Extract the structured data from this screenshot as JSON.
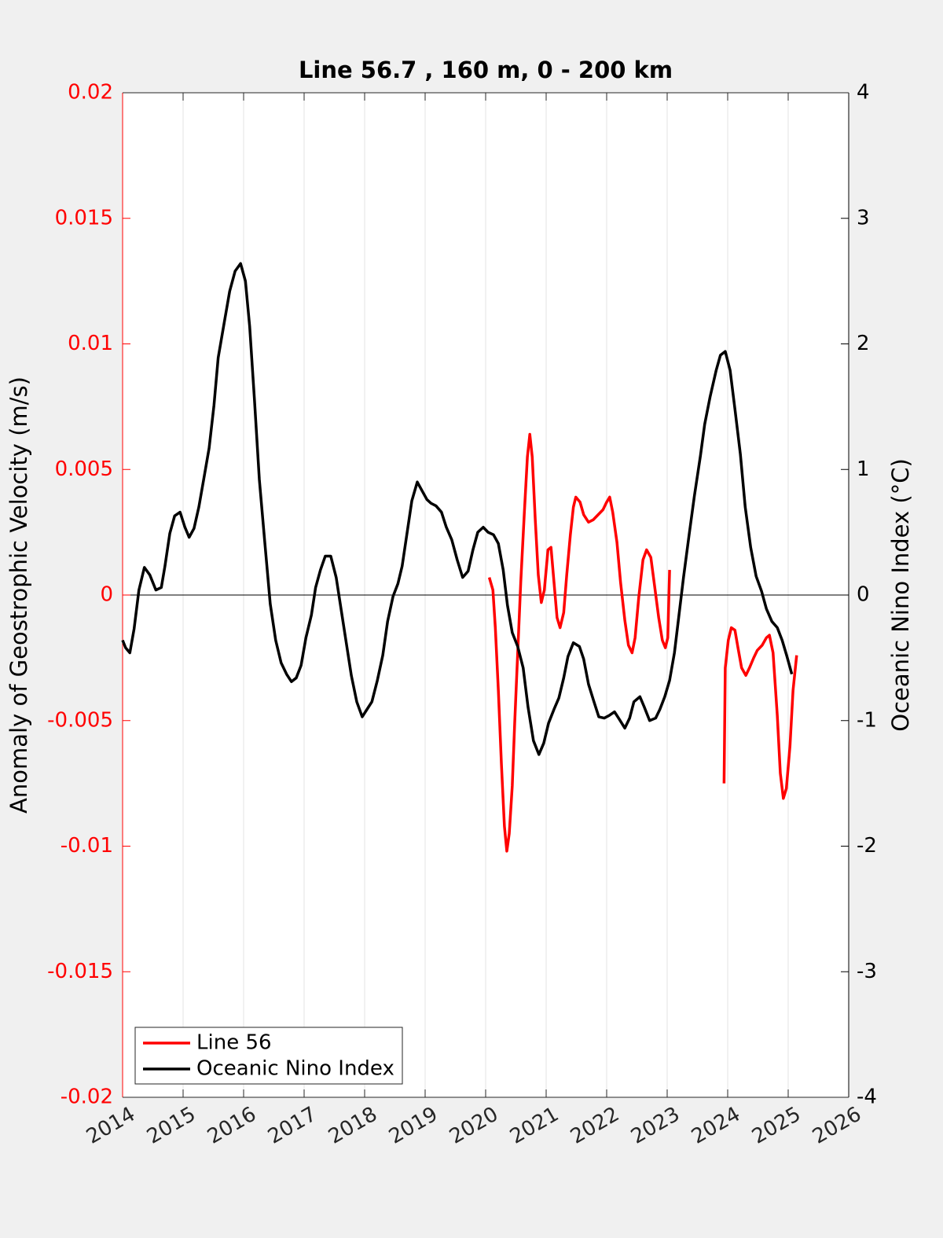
{
  "chart_data": {
    "type": "line",
    "title": "Line 56.7 , 160 m, 0 - 200 km",
    "y_label": "Anomaly of Geostrophic Velocity (m/s)",
    "y2_label": "Oceanic Nino Index (°C)",
    "xlim": [
      2014,
      2026
    ],
    "xticks": [
      2014,
      2015,
      2016,
      2017,
      2018,
      2019,
      2020,
      2021,
      2022,
      2023,
      2024,
      2025,
      2026
    ],
    "ylim": [
      -0.02,
      0.02
    ],
    "yticks": [
      -0.02,
      -0.015,
      -0.01,
      -0.005,
      0,
      0.005,
      0.01,
      0.015,
      0.02
    ],
    "y2lim": [
      -4,
      4
    ],
    "y2ticks": [
      -4,
      -3,
      -2,
      -1,
      0,
      1,
      2,
      3,
      4
    ],
    "grid": "x",
    "legend": "lower left",
    "series": [
      {
        "name": "Line 56",
        "color": "#ff0000",
        "axis": "y",
        "x": [
          2020.06,
          2020.12,
          2020.16,
          2020.21,
          2020.26,
          2020.31,
          2020.35,
          2020.39,
          2020.44,
          2020.48,
          2020.53,
          2020.58,
          2020.64,
          2020.69,
          2020.73,
          2020.77,
          2020.82,
          2020.87,
          2020.92,
          2020.97,
          2021.03,
          2021.08,
          2021.13,
          2021.18,
          2021.23,
          2021.29,
          2021.34,
          2021.4,
          2021.45,
          2021.49,
          2021.56,
          2021.62,
          2021.7,
          2021.78,
          2021.86,
          2021.94,
          2022.0,
          2022.05,
          2022.1,
          2022.17,
          2022.23,
          2022.3,
          2022.36,
          2022.42,
          2022.47,
          2022.53,
          2022.6,
          2022.66,
          2022.73,
          2022.79,
          2022.86,
          2022.92,
          2022.97,
          2023.01,
          2023.04,
          null,
          2023.94,
          2023.96,
          2024.01,
          2024.06,
          2024.12,
          2024.17,
          2024.23,
          2024.3,
          2024.36,
          2024.43,
          2024.49,
          2024.57,
          2024.64,
          2024.69,
          2024.75,
          2024.82,
          2024.87,
          2024.92,
          2024.97,
          2025.03,
          2025.08,
          2025.14
        ],
        "values": [
          0.0007,
          0.0002,
          -0.0013,
          -0.0038,
          -0.0067,
          -0.0092,
          -0.0102,
          -0.0095,
          -0.0076,
          -0.0051,
          -0.0023,
          0.0005,
          0.0033,
          0.0055,
          0.0064,
          0.0055,
          0.003,
          0.0008,
          -0.0003,
          0.0002,
          0.0018,
          0.0019,
          0.0005,
          -0.0009,
          -0.0013,
          -0.0007,
          0.0008,
          0.0024,
          0.0035,
          0.0039,
          0.0037,
          0.0032,
          0.0029,
          0.003,
          0.0032,
          0.0034,
          0.0037,
          0.0039,
          0.0033,
          0.0021,
          0.0005,
          -0.001,
          -0.002,
          -0.0023,
          -0.0017,
          -0.0001,
          0.0014,
          0.0018,
          0.0015,
          0.0004,
          -0.0009,
          -0.0018,
          -0.0021,
          -0.0017,
          0.001,
          null,
          -0.0075,
          -0.0029,
          -0.0018,
          -0.0013,
          -0.0014,
          -0.0021,
          -0.0029,
          -0.0032,
          -0.0029,
          -0.0025,
          -0.0022,
          -0.002,
          -0.0017,
          -0.0016,
          -0.0023,
          -0.0048,
          -0.0071,
          -0.0081,
          -0.0077,
          -0.006,
          -0.0038,
          -0.0024
        ]
      },
      {
        "name": "Oceanic Nino Index",
        "color": "#000000",
        "axis": "y2",
        "x": [
          2014.0,
          2014.05,
          2014.12,
          2014.19,
          2014.27,
          2014.36,
          2014.45,
          2014.55,
          2014.64,
          2014.7,
          2014.78,
          2014.86,
          2014.95,
          2015.03,
          2015.1,
          2015.18,
          2015.26,
          2015.34,
          2015.43,
          2015.51,
          2015.58,
          2015.68,
          2015.77,
          2015.86,
          2015.95,
          2016.03,
          2016.1,
          2016.18,
          2016.26,
          2016.35,
          2016.44,
          2016.53,
          2016.62,
          2016.71,
          2016.79,
          2016.87,
          2016.95,
          2017.03,
          2017.12,
          2017.19,
          2017.27,
          2017.35,
          2017.44,
          2017.53,
          2017.61,
          2017.69,
          2017.78,
          2017.87,
          2017.96,
          2018.04,
          2018.12,
          2018.21,
          2018.3,
          2018.38,
          2018.47,
          2018.55,
          2018.62,
          2018.7,
          2018.78,
          2018.87,
          2018.95,
          2019.03,
          2019.1,
          2019.18,
          2019.27,
          2019.35,
          2019.44,
          2019.53,
          2019.62,
          2019.71,
          2019.79,
          2019.87,
          2019.96,
          2020.04,
          2020.13,
          2020.21,
          2020.29,
          2020.36,
          2020.44,
          2020.53,
          2020.62,
          2020.7,
          2020.79,
          2020.88,
          2020.96,
          2021.04,
          2021.13,
          2021.21,
          2021.29,
          2021.36,
          2021.45,
          2021.55,
          2021.62,
          2021.7,
          2021.79,
          2021.87,
          2021.96,
          2022.04,
          2022.13,
          2022.21,
          2022.3,
          2022.38,
          2022.45,
          2022.55,
          2022.62,
          2022.71,
          2022.81,
          2022.88,
          2022.96,
          2023.04,
          2023.12,
          2023.19,
          2023.27,
          2023.36,
          2023.45,
          2023.55,
          2023.62,
          2023.71,
          2023.81,
          2023.88,
          2023.96,
          2024.04,
          2024.12,
          2024.21,
          2024.29,
          2024.38,
          2024.47,
          2024.56,
          2024.64,
          2024.73,
          2024.82,
          2024.9,
          2024.98,
          2025.06
        ],
        "values": [
          -0.36,
          -0.42,
          -0.46,
          -0.27,
          0.04,
          0.22,
          0.16,
          0.04,
          0.06,
          0.23,
          0.49,
          0.63,
          0.66,
          0.54,
          0.46,
          0.53,
          0.7,
          0.92,
          1.17,
          1.51,
          1.89,
          2.17,
          2.42,
          2.58,
          2.64,
          2.5,
          2.14,
          1.55,
          0.92,
          0.42,
          -0.07,
          -0.36,
          -0.54,
          -0.63,
          -0.69,
          -0.66,
          -0.56,
          -0.34,
          -0.16,
          0.06,
          0.2,
          0.31,
          0.31,
          0.14,
          -0.11,
          -0.36,
          -0.64,
          -0.85,
          -0.97,
          -0.91,
          -0.85,
          -0.68,
          -0.48,
          -0.21,
          -0.01,
          0.09,
          0.23,
          0.49,
          0.75,
          0.9,
          0.83,
          0.76,
          0.73,
          0.71,
          0.66,
          0.54,
          0.44,
          0.28,
          0.14,
          0.19,
          0.36,
          0.5,
          0.54,
          0.5,
          0.48,
          0.41,
          0.2,
          -0.08,
          -0.3,
          -0.41,
          -0.58,
          -0.89,
          -1.16,
          -1.27,
          -1.18,
          -1.02,
          -0.91,
          -0.82,
          -0.66,
          -0.49,
          -0.38,
          -0.41,
          -0.51,
          -0.71,
          -0.85,
          -0.97,
          -0.98,
          -0.96,
          -0.93,
          -0.99,
          -1.06,
          -0.98,
          -0.85,
          -0.81,
          -0.89,
          -1.0,
          -0.98,
          -0.91,
          -0.81,
          -0.68,
          -0.46,
          -0.18,
          0.14,
          0.47,
          0.79,
          1.11,
          1.36,
          1.58,
          1.79,
          1.91,
          1.94,
          1.79,
          1.48,
          1.12,
          0.7,
          0.38,
          0.15,
          0.03,
          -0.11,
          -0.21,
          -0.26,
          -0.36,
          -0.49,
          -0.63
        ]
      }
    ]
  }
}
